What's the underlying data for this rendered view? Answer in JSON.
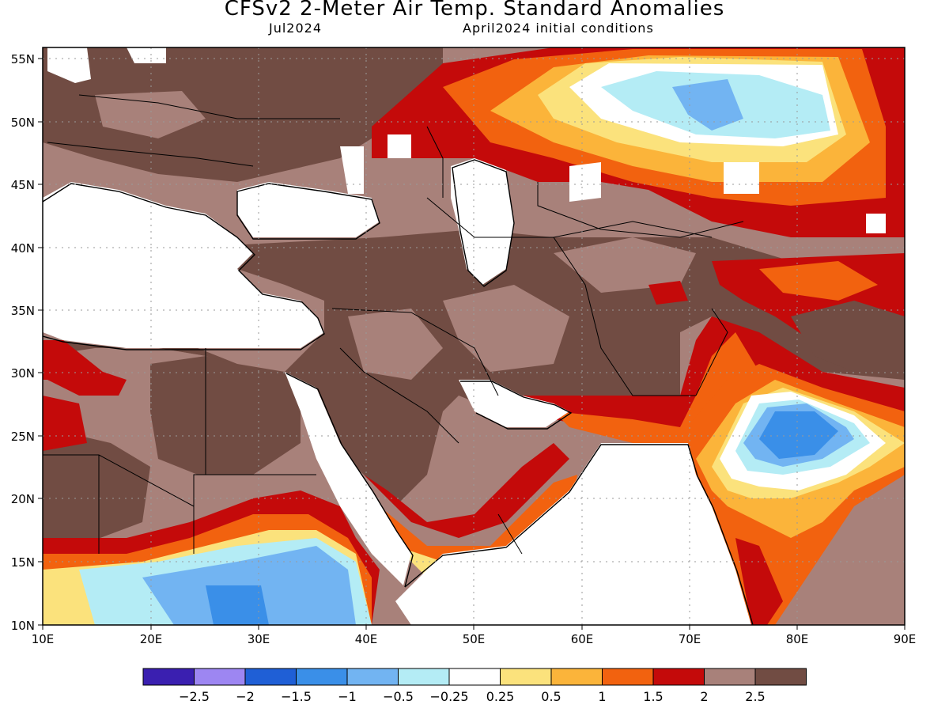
{
  "header": {
    "title": "CFSv2 2-Meter Air Temp. Standard Anomalies",
    "valid_month": "Jul2024",
    "init_conditions": "April2024 initial conditions"
  },
  "map": {
    "lon_ticks": [
      "10E",
      "20E",
      "30E",
      "40E",
      "50E",
      "60E",
      "70E",
      "80E",
      "90E"
    ],
    "lat_ticks": [
      "10N",
      "15N",
      "20N",
      "25N",
      "30N",
      "35N",
      "40N",
      "45N",
      "50N",
      "55N"
    ]
  },
  "colorbar": {
    "labels": [
      "-2.5",
      "-2",
      "-1.5",
      "-1",
      "-0.5",
      "-0.25",
      "0.25",
      "0.5",
      "1",
      "1.5",
      "2",
      "2.5"
    ],
    "colors": [
      "#3a1fb0",
      "#9d86f2",
      "#1f5fd6",
      "#3a8fe8",
      "#72b4f2",
      "#b4ecf5",
      "#ffffff",
      "#fbe27c",
      "#fbb43a",
      "#f2620f",
      "#c40a0a",
      "#a8817a",
      "#714c43"
    ]
  },
  "palette": {
    "sea": "#ffffff",
    "grid": "#9a9a9a",
    "coast": "#000000",
    "brown_dark": "#714c43",
    "brown_light": "#a8817a",
    "red": "#c40a0a",
    "orange": "#f2620f",
    "light_orange": "#fbb43a",
    "yellow": "#fbe27c",
    "light_blue": "#b4ecf5",
    "blue_mid": "#72b4f2",
    "blue": "#3a8fe8",
    "blue_deep": "#1f5fd6"
  }
}
